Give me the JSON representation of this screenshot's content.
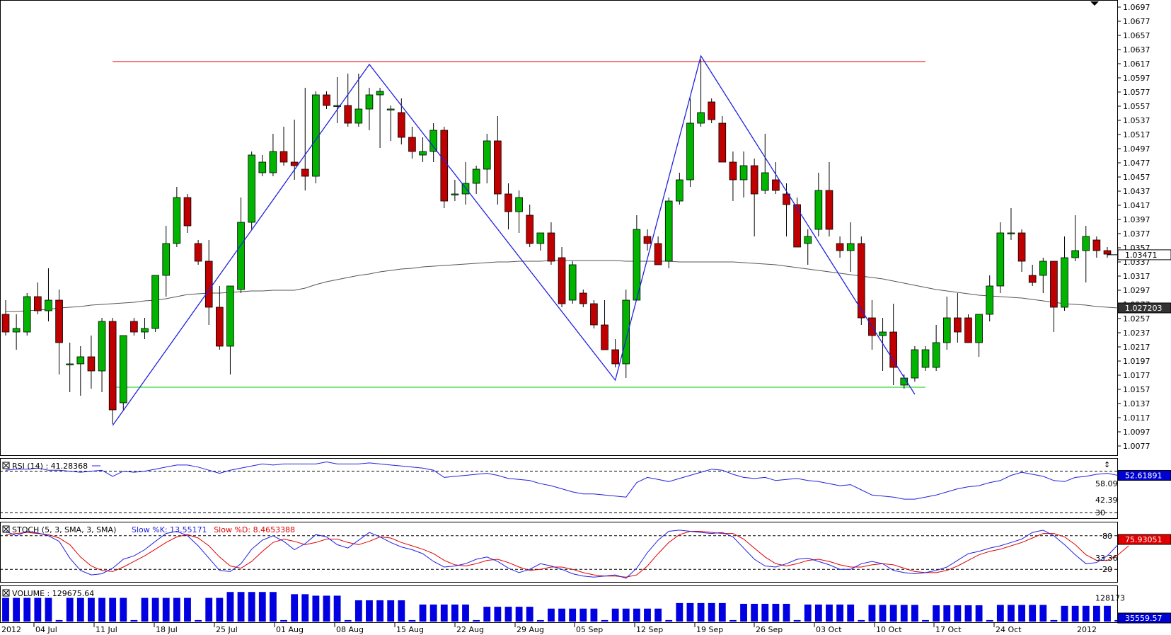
{
  "chart_data": {
    "type": "candlestick",
    "symbol_period_note": "",
    "x_labels": [
      "2012",
      "04 Jul",
      "11 Jul",
      "18 Jul",
      "25 Jul",
      "01 Aug",
      "08 Aug",
      "15 Aug",
      "22 Aug",
      "29 Aug",
      "05 Sep",
      "12 Sep",
      "19 Sep",
      "26 Sep",
      "03 Oct",
      "10 Oct",
      "17 Oct",
      "24 Oct",
      "2012"
    ],
    "price_axis": {
      "ticks": [
        "1.0697",
        "1.0677",
        "1.0657",
        "1.0637",
        "1.0617",
        "1.0597",
        "1.0577",
        "1.0557",
        "1.0537",
        "1.0517",
        "1.0497",
        "1.0477",
        "1.0457",
        "1.0437",
        "1.0417",
        "1.0397",
        "1.0377",
        "1.0357",
        "1.0337",
        "1.0317",
        "1.0297",
        "1.0277",
        "1.0257",
        "1.0237",
        "1.0217",
        "1.0197",
        "1.0177",
        "1.0157",
        "1.0137",
        "1.0117",
        "1.0097",
        "1.0077"
      ],
      "current_price_label": "1.03471",
      "ma_price_label": "1.027203",
      "ylim": [
        1.0067,
        1.0697
      ]
    },
    "resistance_level": 1.062,
    "support_level": 1.016,
    "candles": [
      {
        "o": 1.0263,
        "h": 1.0283,
        "l": 1.0233,
        "c": 1.0238
      },
      {
        "o": 1.0238,
        "h": 1.0263,
        "l": 1.0213,
        "c": 1.0243
      },
      {
        "o": 1.0238,
        "h": 1.0293,
        "l": 1.0233,
        "c": 1.0288
      },
      {
        "o": 1.0288,
        "h": 1.0308,
        "l": 1.0263,
        "c": 1.0268
      },
      {
        "o": 1.0268,
        "h": 1.0328,
        "l": 1.0253,
        "c": 1.0283
      },
      {
        "o": 1.0283,
        "h": 1.0298,
        "l": 1.0178,
        "c": 1.0223
      },
      {
        "o": 1.0193,
        "h": 1.0223,
        "l": 1.0153,
        "c": 1.0193
      },
      {
        "o": 1.0193,
        "h": 1.0218,
        "l": 1.0148,
        "c": 1.0203
      },
      {
        "o": 1.0203,
        "h": 1.0233,
        "l": 1.0158,
        "c": 1.0183
      },
      {
        "o": 1.0183,
        "h": 1.0258,
        "l": 1.0153,
        "c": 1.0253
      },
      {
        "o": 1.0253,
        "h": 1.0258,
        "l": 1.0108,
        "c": 1.0128
      },
      {
        "o": 1.0138,
        "h": 1.0233,
        "l": 1.0128,
        "c": 1.0233
      },
      {
        "o": 1.0253,
        "h": 1.0258,
        "l": 1.0233,
        "c": 1.0238
      },
      {
        "o": 1.0238,
        "h": 1.0258,
        "l": 1.0228,
        "c": 1.0243
      },
      {
        "o": 1.0243,
        "h": 1.0318,
        "l": 1.0238,
        "c": 1.0318
      },
      {
        "o": 1.0318,
        "h": 1.0388,
        "l": 1.0288,
        "c": 1.0363
      },
      {
        "o": 1.0363,
        "h": 1.0443,
        "l": 1.0358,
        "c": 1.0428
      },
      {
        "o": 1.0428,
        "h": 1.0433,
        "l": 1.0378,
        "c": 1.0388
      },
      {
        "o": 1.0363,
        "h": 1.0368,
        "l": 1.0333,
        "c": 1.0338
      },
      {
        "o": 1.0338,
        "h": 1.0368,
        "l": 1.0248,
        "c": 1.0273
      },
      {
        "o": 1.0273,
        "h": 1.0303,
        "l": 1.0213,
        "c": 1.0218
      },
      {
        "o": 1.0218,
        "h": 1.0303,
        "l": 1.0178,
        "c": 1.0303
      },
      {
        "o": 1.0298,
        "h": 1.0428,
        "l": 1.0293,
        "c": 1.0393
      },
      {
        "o": 1.0393,
        "h": 1.0493,
        "l": 1.0383,
        "c": 1.0488
      },
      {
        "o": 1.0463,
        "h": 1.0488,
        "l": 1.0458,
        "c": 1.0478
      },
      {
        "o": 1.0463,
        "h": 1.0518,
        "l": 1.0458,
        "c": 1.0493
      },
      {
        "o": 1.0493,
        "h": 1.0528,
        "l": 1.0473,
        "c": 1.0478
      },
      {
        "o": 1.0478,
        "h": 1.0538,
        "l": 1.0453,
        "c": 1.0473
      },
      {
        "o": 1.0468,
        "h": 1.0583,
        "l": 1.0438,
        "c": 1.0458
      },
      {
        "o": 1.0458,
        "h": 1.0578,
        "l": 1.0448,
        "c": 1.0573
      },
      {
        "o": 1.0573,
        "h": 1.0578,
        "l": 1.0553,
        "c": 1.0558
      },
      {
        "o": 1.0558,
        "h": 1.0598,
        "l": 1.0533,
        "c": 1.0558
      },
      {
        "o": 1.0558,
        "h": 1.0603,
        "l": 1.0528,
        "c": 1.0533
      },
      {
        "o": 1.0533,
        "h": 1.0603,
        "l": 1.0528,
        "c": 1.0553
      },
      {
        "o": 1.0553,
        "h": 1.0583,
        "l": 1.0523,
        "c": 1.0573
      },
      {
        "o": 1.0573,
        "h": 1.0583,
        "l": 1.0498,
        "c": 1.0578
      },
      {
        "o": 1.0553,
        "h": 1.0558,
        "l": 1.0508,
        "c": 1.0553
      },
      {
        "o": 1.0548,
        "h": 1.0568,
        "l": 1.0503,
        "c": 1.0513
      },
      {
        "o": 1.0513,
        "h": 1.0528,
        "l": 1.0483,
        "c": 1.0493
      },
      {
        "o": 1.0488,
        "h": 1.0513,
        "l": 1.0478,
        "c": 1.0493
      },
      {
        "o": 1.0493,
        "h": 1.0533,
        "l": 1.0478,
        "c": 1.0523
      },
      {
        "o": 1.0523,
        "h": 1.0528,
        "l": 1.0413,
        "c": 1.0423
      },
      {
        "o": 1.0433,
        "h": 1.0453,
        "l": 1.0423,
        "c": 1.0433
      },
      {
        "o": 1.0433,
        "h": 1.0478,
        "l": 1.0418,
        "c": 1.0448
      },
      {
        "o": 1.0448,
        "h": 1.0473,
        "l": 1.0433,
        "c": 1.0468
      },
      {
        "o": 1.0468,
        "h": 1.0518,
        "l": 1.0448,
        "c": 1.0508
      },
      {
        "o": 1.0508,
        "h": 1.0543,
        "l": 1.0418,
        "c": 1.0433
      },
      {
        "o": 1.0433,
        "h": 1.0448,
        "l": 1.0383,
        "c": 1.0408
      },
      {
        "o": 1.0408,
        "h": 1.0438,
        "l": 1.0378,
        "c": 1.0428
      },
      {
        "o": 1.0403,
        "h": 1.0418,
        "l": 1.0358,
        "c": 1.0363
      },
      {
        "o": 1.0363,
        "h": 1.0378,
        "l": 1.0353,
        "c": 1.0378
      },
      {
        "o": 1.0378,
        "h": 1.0393,
        "l": 1.0333,
        "c": 1.0338
      },
      {
        "o": 1.0343,
        "h": 1.0358,
        "l": 1.0273,
        "c": 1.0278
      },
      {
        "o": 1.0283,
        "h": 1.0338,
        "l": 1.0278,
        "c": 1.0333
      },
      {
        "o": 1.0293,
        "h": 1.0298,
        "l": 1.0273,
        "c": 1.0278
      },
      {
        "o": 1.0278,
        "h": 1.0283,
        "l": 1.0243,
        "c": 1.0248
      },
      {
        "o": 1.0248,
        "h": 1.0283,
        "l": 1.0213,
        "c": 1.0213
      },
      {
        "o": 1.0213,
        "h": 1.0228,
        "l": 1.0188,
        "c": 1.0193
      },
      {
        "o": 1.0193,
        "h": 1.0298,
        "l": 1.0173,
        "c": 1.0283
      },
      {
        "o": 1.0283,
        "h": 1.0403,
        "l": 1.0283,
        "c": 1.0383
      },
      {
        "o": 1.0373,
        "h": 1.0383,
        "l": 1.0353,
        "c": 1.0363
      },
      {
        "o": 1.0363,
        "h": 1.0373,
        "l": 1.0333,
        "c": 1.0333
      },
      {
        "o": 1.0338,
        "h": 1.0428,
        "l": 1.0328,
        "c": 1.0423
      },
      {
        "o": 1.0423,
        "h": 1.0463,
        "l": 1.0418,
        "c": 1.0453
      },
      {
        "o": 1.0453,
        "h": 1.0568,
        "l": 1.0443,
        "c": 1.0533
      },
      {
        "o": 1.0533,
        "h": 1.0623,
        "l": 1.0528,
        "c": 1.0548
      },
      {
        "o": 1.0563,
        "h": 1.0568,
        "l": 1.0533,
        "c": 1.0538
      },
      {
        "o": 1.0533,
        "h": 1.0543,
        "l": 1.0478,
        "c": 1.0478
      },
      {
        "o": 1.0478,
        "h": 1.0493,
        "l": 1.0423,
        "c": 1.0453
      },
      {
        "o": 1.0453,
        "h": 1.0493,
        "l": 1.0428,
        "c": 1.0473
      },
      {
        "o": 1.0473,
        "h": 1.0483,
        "l": 1.0373,
        "c": 1.0433
      },
      {
        "o": 1.0438,
        "h": 1.0518,
        "l": 1.0433,
        "c": 1.0463
      },
      {
        "o": 1.0453,
        "h": 1.0478,
        "l": 1.0433,
        "c": 1.0438
      },
      {
        "o": 1.0433,
        "h": 1.0448,
        "l": 1.0373,
        "c": 1.0418
      },
      {
        "o": 1.0418,
        "h": 1.0428,
        "l": 1.0358,
        "c": 1.0358
      },
      {
        "o": 1.0363,
        "h": 1.0383,
        "l": 1.0333,
        "c": 1.0373
      },
      {
        "o": 1.0383,
        "h": 1.0463,
        "l": 1.0373,
        "c": 1.0438
      },
      {
        "o": 1.0438,
        "h": 1.0478,
        "l": 1.0373,
        "c": 1.0383
      },
      {
        "o": 1.0363,
        "h": 1.0373,
        "l": 1.0343,
        "c": 1.0353
      },
      {
        "o": 1.0353,
        "h": 1.0393,
        "l": 1.0323,
        "c": 1.0363
      },
      {
        "o": 1.0363,
        "h": 1.0373,
        "l": 1.0248,
        "c": 1.0258
      },
      {
        "o": 1.0258,
        "h": 1.0283,
        "l": 1.0213,
        "c": 1.0233
      },
      {
        "o": 1.0233,
        "h": 1.0258,
        "l": 1.0183,
        "c": 1.0238
      },
      {
        "o": 1.0238,
        "h": 1.0278,
        "l": 1.0163,
        "c": 1.0188
      },
      {
        "o": 1.0163,
        "h": 1.0178,
        "l": 1.0158,
        "c": 1.0173
      },
      {
        "o": 1.0173,
        "h": 1.0218,
        "l": 1.0168,
        "c": 1.0213
      },
      {
        "o": 1.0188,
        "h": 1.0218,
        "l": 1.0183,
        "c": 1.0213
      },
      {
        "o": 1.0188,
        "h": 1.0248,
        "l": 1.0183,
        "c": 1.0223
      },
      {
        "o": 1.0223,
        "h": 1.0288,
        "l": 1.0213,
        "c": 1.0258
      },
      {
        "o": 1.0258,
        "h": 1.0293,
        "l": 1.0223,
        "c": 1.0238
      },
      {
        "o": 1.0258,
        "h": 1.0263,
        "l": 1.0223,
        "c": 1.0223
      },
      {
        "o": 1.0223,
        "h": 1.0263,
        "l": 1.0203,
        "c": 1.0263
      },
      {
        "o": 1.0263,
        "h": 1.0318,
        "l": 1.0253,
        "c": 1.0303
      },
      {
        "o": 1.0303,
        "h": 1.0393,
        "l": 1.0293,
        "c": 1.0378
      },
      {
        "o": 1.0378,
        "h": 1.0413,
        "l": 1.0368,
        "c": 1.0378
      },
      {
        "o": 1.0378,
        "h": 1.0383,
        "l": 1.0323,
        "c": 1.0338
      },
      {
        "o": 1.0318,
        "h": 1.0333,
        "l": 1.0303,
        "c": 1.0308
      },
      {
        "o": 1.0318,
        "h": 1.0343,
        "l": 1.0293,
        "c": 1.0338
      },
      {
        "o": 1.0338,
        "h": 1.0338,
        "l": 1.0238,
        "c": 1.0273
      },
      {
        "o": 1.0273,
        "h": 1.0373,
        "l": 1.0268,
        "c": 1.0343
      },
      {
        "o": 1.0343,
        "h": 1.0403,
        "l": 1.0338,
        "c": 1.0353
      },
      {
        "o": 1.0353,
        "h": 1.0388,
        "l": 1.0308,
        "c": 1.0373
      },
      {
        "o": 1.0368,
        "h": 1.0373,
        "l": 1.0343,
        "c": 1.0353
      },
      {
        "o": 1.0353,
        "h": 1.0358,
        "l": 1.0343,
        "c": 1.0348
      }
    ],
    "ma_line": [
      1.0267,
      1.0267,
      1.0268,
      1.0269,
      1.027,
      1.0272,
      1.0273,
      1.0274,
      1.0276,
      1.0277,
      1.0278,
      1.0279,
      1.028,
      1.0282,
      1.0283,
      1.0285,
      1.0288,
      1.0291,
      1.0292,
      1.0293,
      1.0293,
      1.0294,
      1.0295,
      1.0296,
      1.0296,
      1.0297,
      1.0297,
      1.0297,
      1.03,
      1.0305,
      1.0309,
      1.0312,
      1.0315,
      1.0318,
      1.032,
      1.0323,
      1.0325,
      1.0327,
      1.0328,
      1.033,
      1.0331,
      1.0332,
      1.0333,
      1.0334,
      1.0335,
      1.0336,
      1.0337,
      1.0337,
      1.0338,
      1.0338,
      1.0338,
      1.0339,
      1.0339,
      1.0339,
      1.0339,
      1.0339,
      1.0339,
      1.0339,
      1.0338,
      1.0338,
      1.0338,
      1.0338,
      1.0338,
      1.0337,
      1.0337,
      1.0337,
      1.0337,
      1.0337,
      1.0337,
      1.0336,
      1.0335,
      1.0334,
      1.0333,
      1.0331,
      1.0329,
      1.0327,
      1.0325,
      1.0323,
      1.0321,
      1.0319,
      1.0317,
      1.0315,
      1.0313,
      1.031,
      1.0307,
      1.0304,
      1.0301,
      1.0298,
      1.0296,
      1.0294,
      1.0292,
      1.029,
      1.0289,
      1.0288,
      1.0287,
      1.0286,
      1.0284,
      1.0282,
      1.028,
      1.0278,
      1.0277,
      1.0276,
      1.0274,
      1.0273,
      1.0272,
      1.0272
    ],
    "zigzag": [
      {
        "i": 10,
        "p": 1.0106
      },
      {
        "i": 34,
        "p": 1.0616
      },
      {
        "i": 57,
        "p": 1.017
      },
      {
        "i": 65,
        "p": 1.0628
      },
      {
        "i": 85,
        "p": 1.015
      }
    ],
    "rsi": {
      "label": "RSI (14) : 41.28368",
      "value_label": "52.61891",
      "ticks": [
        "58.09",
        "42.39",
        "30"
      ],
      "top_tick": "↕",
      "ylim": [
        26,
        80
      ],
      "values": [
        71,
        72,
        72,
        73,
        71,
        71,
        70,
        69,
        70,
        71,
        65,
        70,
        69,
        70,
        72,
        74,
        76,
        76,
        74,
        71,
        68,
        71,
        73,
        75,
        77,
        76,
        77,
        77,
        77,
        77,
        79,
        77,
        77,
        77,
        78,
        77,
        76,
        75,
        74,
        73,
        71,
        64,
        65,
        66,
        67,
        68,
        66,
        63,
        62,
        61,
        58,
        56,
        53,
        50,
        48,
        48,
        47,
        46,
        45,
        59,
        64,
        62,
        60,
        63,
        66,
        69,
        72,
        71,
        67,
        64,
        63,
        64,
        61,
        62,
        63,
        61,
        60,
        58,
        56,
        57,
        52,
        47,
        46,
        45,
        43,
        43,
        45,
        47,
        50,
        53,
        55,
        56,
        59,
        61,
        66,
        69,
        67,
        65,
        61,
        60,
        64,
        65,
        67,
        68,
        66,
        66
      ]
    },
    "stoch": {
      "label": "STOCH (5, 3, SMA, 3, SMA)",
      "k_label": "Slow %K: 13.55171",
      "d_label": "Slow %D: 8.4653388",
      "value_label": "75.93051",
      "ticks": [
        "80",
        "20",
        "33.36"
      ],
      "ylim": [
        0,
        100
      ],
      "k": [
        88,
        80,
        88,
        85,
        80,
        70,
        40,
        18,
        10,
        12,
        22,
        38,
        44,
        55,
        70,
        84,
        88,
        80,
        62,
        40,
        18,
        16,
        30,
        56,
        72,
        80,
        70,
        55,
        66,
        82,
        78,
        64,
        58,
        72,
        86,
        78,
        68,
        60,
        55,
        48,
        34,
        24,
        26,
        30,
        38,
        42,
        34,
        22,
        14,
        20,
        30,
        26,
        20,
        12,
        8,
        6,
        8,
        10,
        4,
        22,
        50,
        72,
        88,
        90,
        88,
        86,
        84,
        86,
        78,
        58,
        38,
        26,
        24,
        30,
        38,
        40,
        34,
        28,
        20,
        20,
        30,
        34,
        30,
        18,
        14,
        12,
        14,
        18,
        24,
        36,
        48,
        52,
        58,
        62,
        68,
        74,
        86,
        90,
        80,
        64,
        46,
        30,
        32,
        44,
        64,
        74
      ],
      "d": [
        82,
        84,
        86,
        84,
        82,
        76,
        64,
        42,
        26,
        18,
        16,
        24,
        34,
        44,
        56,
        68,
        78,
        82,
        76,
        62,
        42,
        26,
        22,
        34,
        52,
        68,
        74,
        70,
        64,
        68,
        74,
        74,
        68,
        64,
        70,
        78,
        76,
        68,
        62,
        56,
        48,
        36,
        28,
        26,
        30,
        36,
        38,
        32,
        24,
        18,
        20,
        24,
        24,
        20,
        14,
        10,
        8,
        8,
        6,
        10,
        26,
        48,
        68,
        82,
        88,
        88,
        86,
        84,
        84,
        74,
        58,
        42,
        30,
        26,
        30,
        36,
        38,
        34,
        28,
        24,
        24,
        28,
        30,
        28,
        22,
        16,
        14,
        14,
        18,
        26,
        36,
        46,
        52,
        56,
        62,
        68,
        76,
        84,
        84,
        78,
        64,
        46,
        36,
        36,
        46,
        62
      ]
    },
    "volume": {
      "label": "VOLUME : 129675.64",
      "value_label": "35559.57",
      "ticks": [
        "128173"
      ],
      "ymax": 180000,
      "values": [
        128000,
        128000,
        128000,
        128000,
        128000,
        8000,
        128000,
        128000,
        128000,
        128000,
        128000,
        128000,
        8000,
        128000,
        128000,
        128000,
        128000,
        128000,
        8000,
        128000,
        128000,
        160000,
        160000,
        160000,
        160000,
        160000,
        8000,
        148000,
        148000,
        140000,
        140000,
        140000,
        8000,
        115000,
        115000,
        115000,
        115000,
        115000,
        8000,
        92000,
        92000,
        92000,
        92000,
        92000,
        8000,
        80000,
        80000,
        80000,
        80000,
        80000,
        8000,
        70000,
        70000,
        70000,
        70000,
        70000,
        8000,
        70000,
        70000,
        70000,
        70000,
        70000,
        8000,
        100000,
        100000,
        100000,
        100000,
        100000,
        8000,
        96000,
        96000,
        96000,
        96000,
        96000,
        8000,
        92000,
        92000,
        92000,
        92000,
        92000,
        8000,
        90000,
        90000,
        90000,
        90000,
        90000,
        8000,
        88000,
        88000,
        88000,
        88000,
        88000,
        8000,
        90000,
        90000,
        90000,
        90000,
        90000,
        8000,
        85000,
        85000,
        85000,
        85000,
        85000,
        8000,
        35000
      ]
    }
  }
}
